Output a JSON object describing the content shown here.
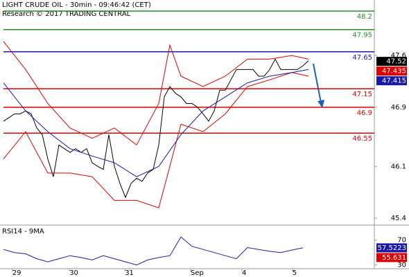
{
  "chart_data": [
    {
      "type": "price",
      "title": "LIGHT CRUDE OIL - 30min - 09:46:42 (CET)",
      "subtitle": "Research © 2017 TRADING CENTRAL",
      "ylim": [
        45.26,
        48.35
      ],
      "yticks": [
        45.4,
        46.1,
        46.9,
        47.6
      ],
      "xlim": [
        0,
        67
      ],
      "xticks": [
        {
          "value": 1.6,
          "label": "29"
        },
        {
          "value": 11.9,
          "label": "30"
        },
        {
          "value": 21.9,
          "label": "31"
        },
        {
          "value": 33.75,
          "label": "Sep"
        },
        {
          "value": 43,
          "label": "4"
        },
        {
          "value": 52.1,
          "label": "5"
        }
      ],
      "levels": [
        {
          "value": 48.2,
          "color": "#2a8a2a"
        },
        {
          "value": 47.95,
          "color": "#2a8a2a"
        },
        {
          "value": 47.65,
          "color": "#1a1aa8"
        },
        {
          "value": 47.15,
          "color": "#dd0000"
        },
        {
          "value": 46.9,
          "color": "#dd0000"
        },
        {
          "value": 46.55,
          "color": "#dd0000"
        }
      ],
      "price_labels": [
        {
          "value": 47.52,
          "color": "#000000"
        },
        {
          "value": 47.435,
          "color": "#dd0000"
        },
        {
          "value": 47.415,
          "color": "#1a1aa8"
        }
      ],
      "series": [
        {
          "name": "Price",
          "color": "#000000",
          "x": [
            0,
            1,
            2,
            3,
            4,
            5,
            6,
            7,
            8,
            9,
            10,
            11,
            12,
            13,
            14,
            15,
            16,
            17,
            18,
            19,
            20,
            21,
            22,
            23,
            24,
            25,
            26,
            27,
            28,
            29,
            30,
            31,
            32,
            33,
            34,
            35,
            36,
            37,
            38,
            39,
            40,
            41,
            42,
            43,
            44,
            45,
            46,
            47,
            48,
            49,
            50,
            51,
            52,
            53,
            54,
            55
          ],
          "values": [
            46.71,
            46.76,
            46.81,
            46.81,
            46.85,
            46.81,
            46.62,
            46.53,
            46.2,
            45.96,
            46.39,
            46.34,
            46.29,
            46.34,
            46.29,
            46.34,
            46.15,
            46.1,
            46.06,
            46.53,
            46.1,
            45.87,
            45.68,
            45.87,
            45.94,
            45.9,
            46.01,
            46.06,
            46.39,
            47.04,
            47.18,
            47.09,
            47.04,
            46.95,
            46.95,
            46.9,
            46.81,
            46.71,
            46.85,
            47.13,
            47.13,
            47.27,
            47.41,
            47.41,
            47.41,
            47.41,
            47.32,
            47.32,
            47.41,
            47.55,
            47.41,
            47.41,
            47.41,
            47.41,
            47.46,
            47.53
          ]
        },
        {
          "name": "Upper band",
          "color": "#dd0000",
          "x": [
            0,
            4,
            8,
            12,
            16,
            20,
            24,
            28,
            30,
            32,
            36,
            40,
            44,
            48,
            52,
            55
          ],
          "values": [
            47.79,
            47.41,
            46.95,
            46.62,
            46.48,
            46.62,
            46.39,
            46.95,
            47.74,
            47.32,
            47.18,
            47.32,
            47.55,
            47.55,
            47.6,
            47.55
          ]
        },
        {
          "name": "Lower band",
          "color": "#dd0000",
          "x": [
            0,
            4,
            8,
            12,
            16,
            20,
            24,
            28,
            30,
            32,
            36,
            40,
            44,
            48,
            52,
            55
          ],
          "values": [
            46.2,
            46.57,
            46.01,
            46.01,
            45.96,
            45.64,
            45.64,
            45.54,
            46.1,
            46.67,
            46.57,
            46.81,
            47.18,
            47.27,
            47.37,
            47.32
          ]
        },
        {
          "name": "Moving average",
          "color": "#1a1aa8",
          "x": [
            0,
            4,
            8,
            12,
            16,
            20,
            24,
            28,
            32,
            36,
            40,
            44,
            48,
            52,
            55
          ],
          "values": [
            47.23,
            46.85,
            46.57,
            46.34,
            46.24,
            46.15,
            45.96,
            46.1,
            46.53,
            46.85,
            47.04,
            47.23,
            47.32,
            47.37,
            47.41
          ]
        }
      ]
    },
    {
      "type": "rsi",
      "title": "RSI14 - 9MA",
      "ylim": [
        24,
        92
      ],
      "yticks": [
        30,
        70
      ],
      "xlim": [
        0,
        67
      ],
      "price_labels": [
        {
          "value": 57.5223,
          "color": "#1a1aa8"
        },
        {
          "value": 55.631,
          "color": "#dd0000"
        }
      ],
      "series": [
        {
          "name": "RSI",
          "color": "#1a1aa8",
          "x": [
            0,
            2,
            4,
            6,
            8,
            10,
            12,
            14,
            16,
            18,
            20,
            22,
            24,
            26,
            28,
            30,
            32,
            34,
            36,
            38,
            40,
            42,
            44,
            46,
            48,
            50,
            52,
            54
          ],
          "values": [
            55,
            50,
            48,
            40,
            35,
            40,
            45,
            42,
            38,
            45,
            40,
            35,
            30,
            38,
            42,
            45,
            75,
            60,
            55,
            50,
            45,
            40,
            58,
            55,
            52,
            50,
            54,
            57.5
          ]
        }
      ]
    }
  ]
}
